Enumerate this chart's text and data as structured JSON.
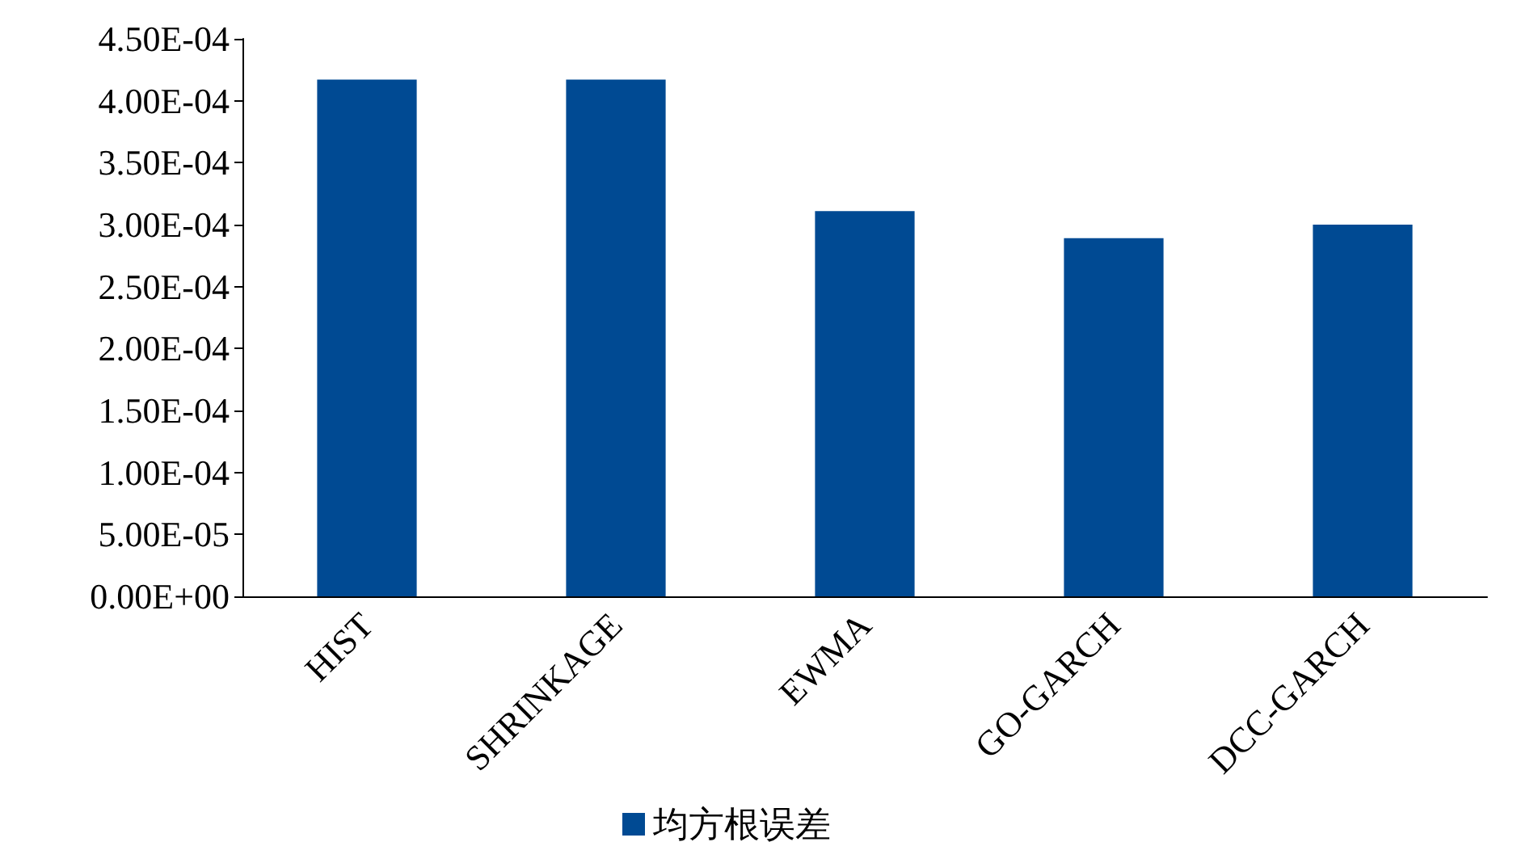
{
  "chart_data": {
    "type": "bar",
    "categories": [
      "HIST",
      "SHRINKAGE",
      "EWMA",
      "GO-GARCH",
      "DCC-GARCH"
    ],
    "series": [
      {
        "name": "均方根误差",
        "color": "#004a93",
        "values": [
          0.000417,
          0.000417,
          0.000311,
          0.000289,
          0.0003
        ]
      }
    ],
    "ylim": [
      0,
      0.00045
    ],
    "yticks": [
      {
        "value": 0,
        "label": "0.00E+00"
      },
      {
        "value": 5e-05,
        "label": "5.00E-05"
      },
      {
        "value": 0.0001,
        "label": "1.00E-04"
      },
      {
        "value": 0.00015,
        "label": "1.50E-04"
      },
      {
        "value": 0.0002,
        "label": "2.00E-04"
      },
      {
        "value": 0.00025,
        "label": "2.50E-04"
      },
      {
        "value": 0.0003,
        "label": "3.00E-04"
      },
      {
        "value": 0.00035,
        "label": "3.50E-04"
      },
      {
        "value": 0.0004,
        "label": "4.00E-04"
      },
      {
        "value": 0.00045,
        "label": "4.50E-04"
      }
    ],
    "grid": false,
    "legend": "bottom"
  }
}
